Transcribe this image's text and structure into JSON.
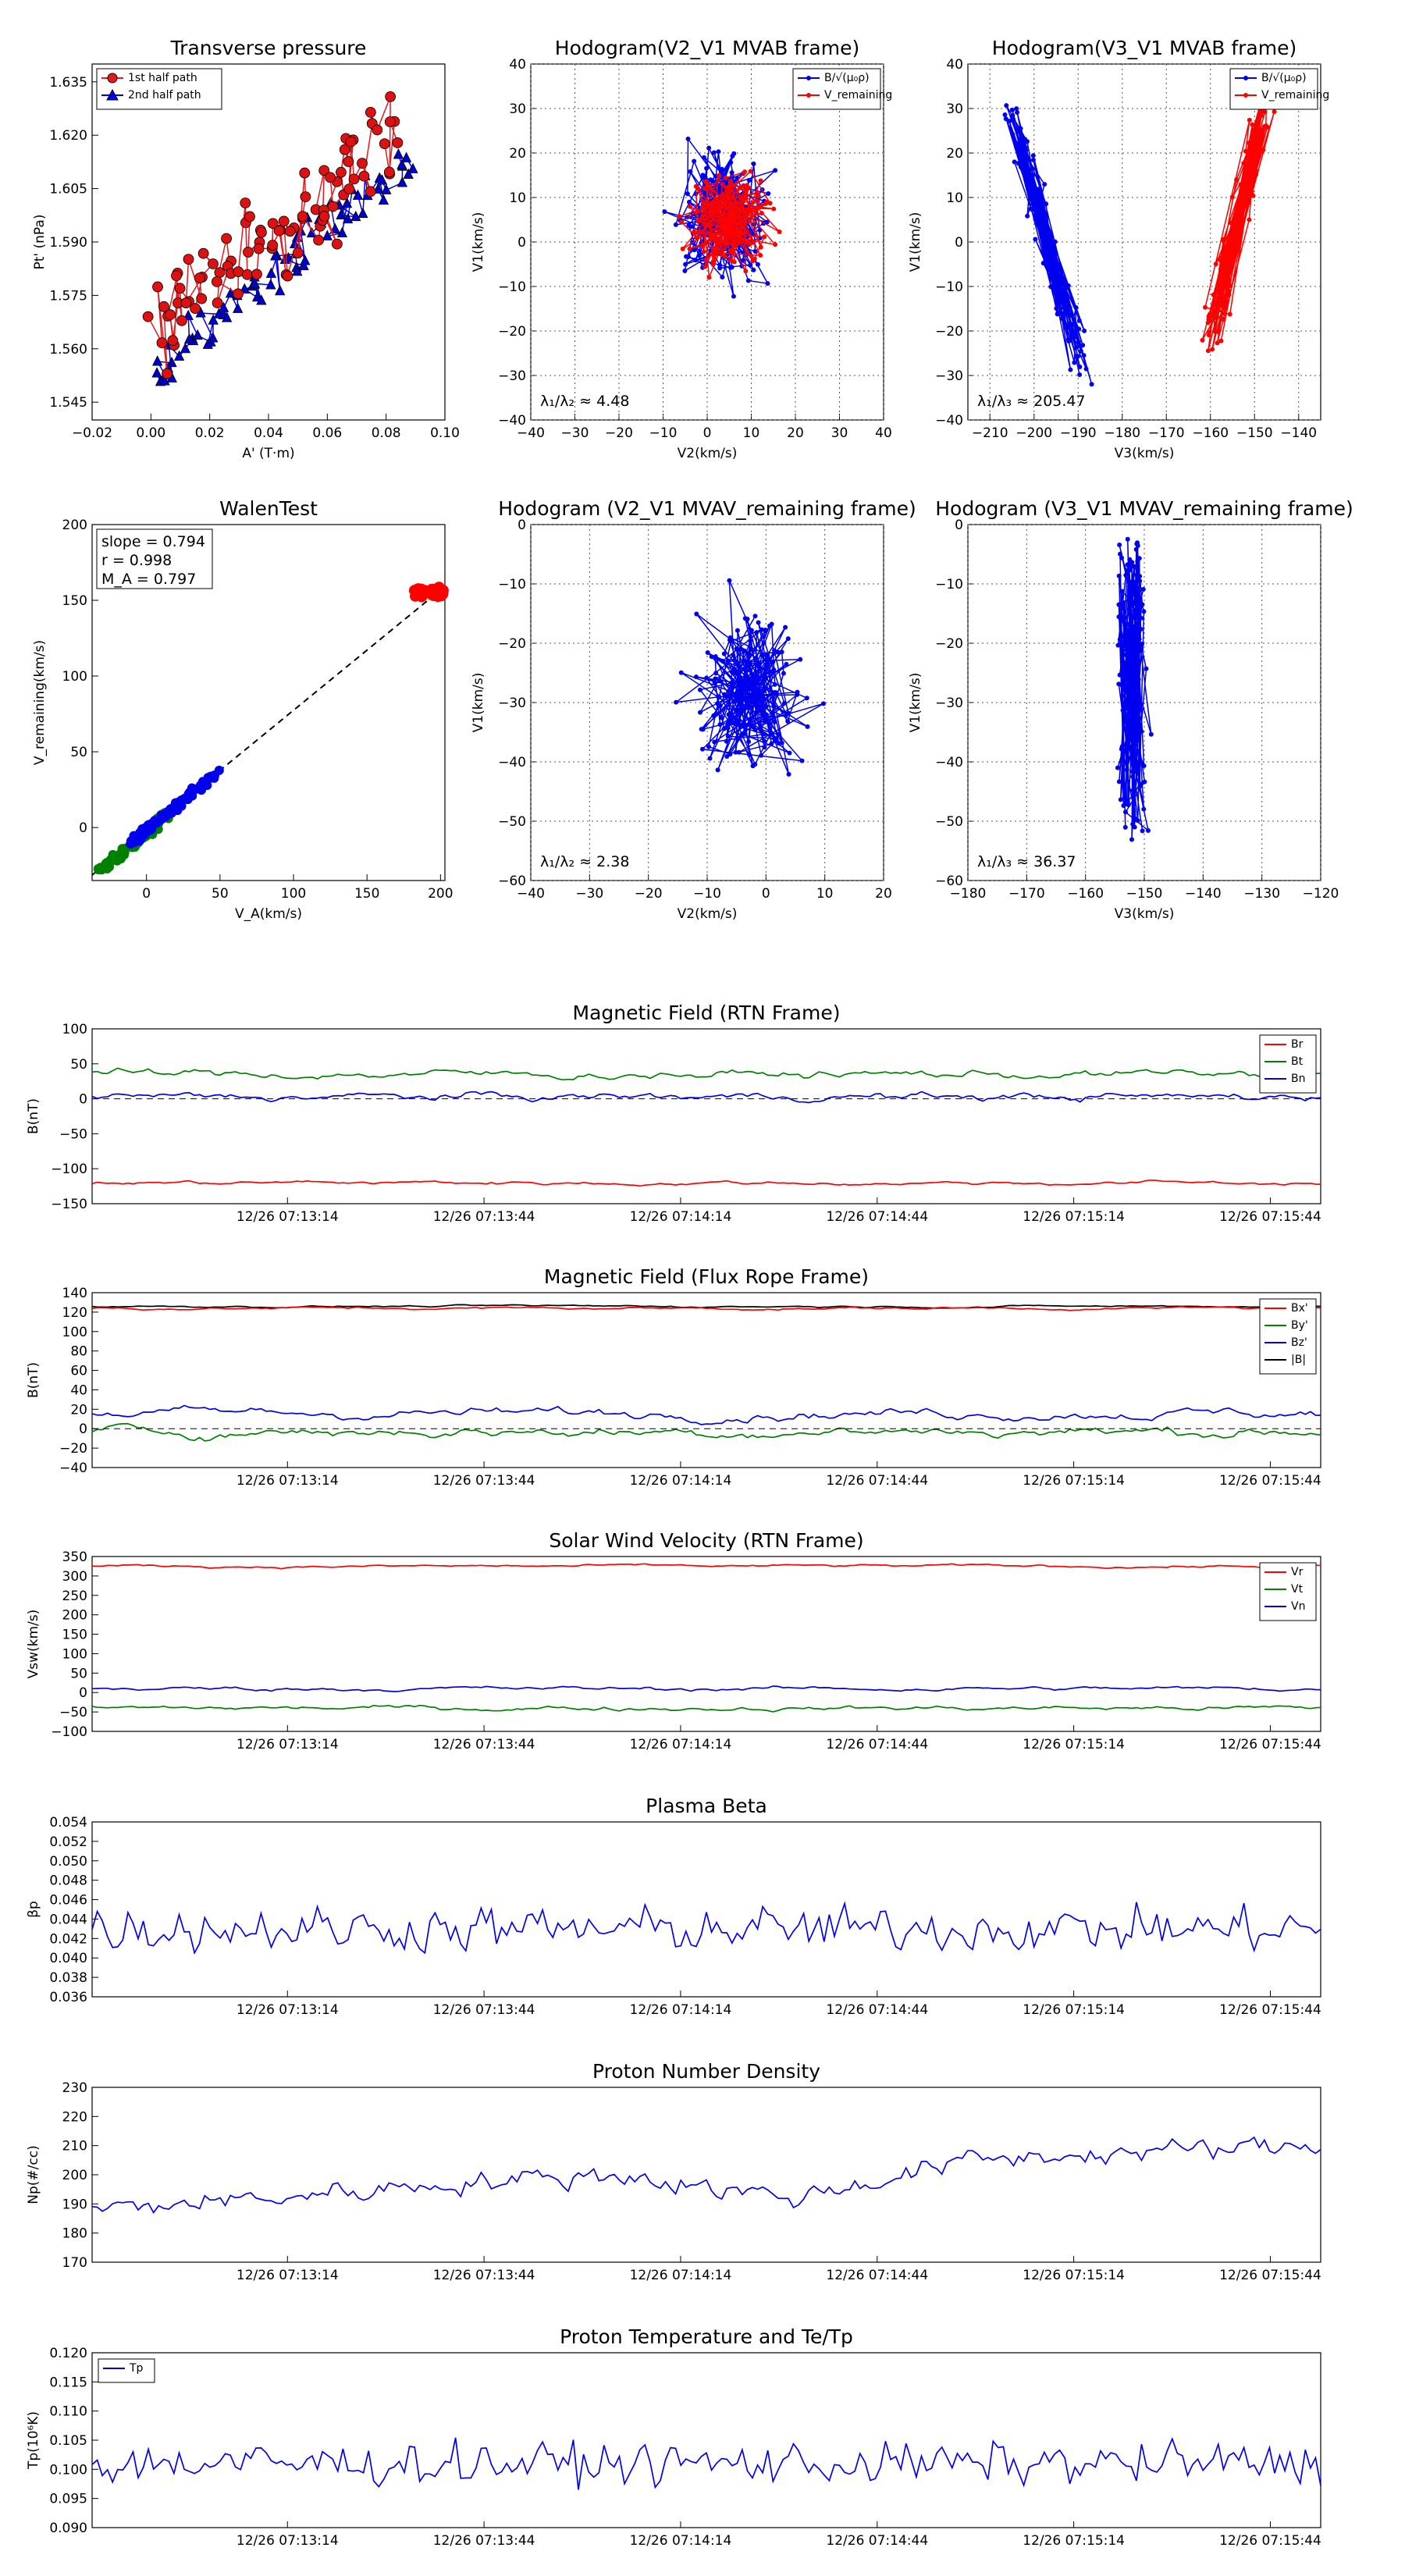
{
  "colors": {
    "red": "#e41a1c",
    "blue": "#0000ee",
    "green": "#008000",
    "black": "#000000",
    "series_red": "#ff0000"
  },
  "chart_data": [
    {
      "id": "pt",
      "type": "scatter",
      "title": "Transverse pressure",
      "xlabel": "A' (T·m)",
      "ylabel": "Pt' (nPa)",
      "xlim": [
        -0.02,
        0.1
      ],
      "ylim": [
        1.54,
        1.64
      ],
      "xticks": [
        "−0.02",
        "0.00",
        "0.02",
        "0.04",
        "0.06",
        "0.08",
        "0.10"
      ],
      "yticks": [
        "1.545",
        "1.560",
        "1.575",
        "1.590",
        "1.605",
        "1.620",
        "1.635"
      ],
      "legend": [
        "1st half path",
        "2nd half path"
      ],
      "series": [
        {
          "name": "1st half path",
          "trend": {
            "x": [
              0.0,
              0.02,
              0.04,
              0.06,
              0.085
            ],
            "y": [
              1.566,
              1.583,
              1.59,
              1.605,
              1.62
            ]
          }
        },
        {
          "name": "2nd half path",
          "trend": {
            "x": [
              0.0,
              0.02,
              0.04,
              0.06,
              0.088
            ],
            "y": [
              1.551,
              1.567,
              1.584,
              1.598,
              1.612
            ]
          }
        }
      ]
    },
    {
      "id": "h1",
      "type": "line",
      "title": "Hodogram(V2_V1 MVAB frame)",
      "xlabel": "V2(km/s)",
      "ylabel": "V1(km/s)",
      "xlim": [
        -40,
        40
      ],
      "ylim": [
        -40,
        40
      ],
      "xticks": [
        "−40",
        "−30",
        "−20",
        "−10",
        "0",
        "10",
        "20",
        "30",
        "40"
      ],
      "yticks": [
        "−40",
        "−30",
        "−20",
        "−10",
        "0",
        "10",
        "20",
        "30",
        "40"
      ],
      "legend": [
        "B/√(μ₀ρ)",
        "V_remaining"
      ],
      "note": "λ₁/λ₂ ≈ 4.48"
    },
    {
      "id": "h2",
      "type": "line",
      "title": "Hodogram(V3_V1 MVAB frame)",
      "xlabel": "V3(km/s)",
      "ylabel": "V1(km/s)",
      "xlim": [
        -215,
        -135
      ],
      "ylim": [
        -40,
        40
      ],
      "xticks": [
        "−210",
        "−200",
        "−190",
        "−180",
        "−170",
        "−160",
        "−150",
        "−140"
      ],
      "yticks": [
        "−40",
        "−30",
        "−20",
        "−10",
        "0",
        "10",
        "20",
        "30",
        "40"
      ],
      "legend": [
        "B/√(μ₀ρ)",
        "V_remaining"
      ],
      "note": "λ₁/λ₃ ≈ 205.47"
    },
    {
      "id": "walen",
      "type": "scatter",
      "title": "WalenTest",
      "xlabel": "V_A(km/s)",
      "ylabel": "V_remaining(km/s)",
      "xlim": [
        -37,
        203
      ],
      "ylim": [
        -35,
        200
      ],
      "xticks": [
        "0",
        "50",
        "100",
        "150",
        "200"
      ],
      "yticks": [
        "0",
        "50",
        "100",
        "150",
        "200"
      ],
      "stats": [
        "slope = 0.794",
        "r = 0.998",
        "M_A = 0.797"
      ]
    },
    {
      "id": "h3",
      "type": "line",
      "title": "Hodogram (V2_V1 MVAV_remaining frame)",
      "xlabel": "V2(km/s)",
      "ylabel": "V1(km/s)",
      "xlim": [
        -40,
        20
      ],
      "ylim": [
        -60,
        0
      ],
      "xticks": [
        "−40",
        "−30",
        "−20",
        "−10",
        "0",
        "10",
        "20"
      ],
      "yticks": [
        "−60",
        "−50",
        "−40",
        "−30",
        "−20",
        "−10",
        "0"
      ],
      "note": "λ₁/λ₂ ≈ 2.38"
    },
    {
      "id": "h4",
      "type": "line",
      "title": "Hodogram (V3_V1 MVAV_remaining frame)",
      "xlabel": "V3(km/s)",
      "ylabel": "V1(km/s)",
      "xlim": [
        -180,
        -120
      ],
      "ylim": [
        -60,
        0
      ],
      "xticks": [
        "−180",
        "−170",
        "−160",
        "−150",
        "−140",
        "−130",
        "−120"
      ],
      "yticks": [
        "−60",
        "−50",
        "−40",
        "−30",
        "−20",
        "−10",
        "0"
      ],
      "note": "λ₁/λ₃ ≈ 36.37"
    },
    {
      "id": "brtn",
      "type": "line",
      "title": "Magnetic Field (RTN Frame)",
      "ylabel": "B(nT)",
      "ylim": [
        -150,
        100
      ],
      "yticks": [
        "−150",
        "−100",
        "−50",
        "0",
        "50",
        "100"
      ],
      "xticks": [
        "12/26 07:13:14",
        "12/26 07:13:44",
        "12/26 07:14:14",
        "12/26 07:14:44",
        "12/26 07:15:14",
        "12/26 07:15:44"
      ],
      "series": [
        {
          "name": "Br",
          "mean": -120
        },
        {
          "name": "Bt",
          "mean": 35
        },
        {
          "name": "Bn",
          "mean": 3
        }
      ]
    },
    {
      "id": "bfr",
      "type": "line",
      "title": "Magnetic Field (Flux Rope Frame)",
      "ylabel": "B(nT)",
      "ylim": [
        -40,
        140
      ],
      "yticks": [
        "−40",
        "−20",
        "0",
        "20",
        "40",
        "60",
        "80",
        "100",
        "120",
        "140"
      ],
      "xticks": [
        "12/26 07:13:14",
        "12/26 07:13:44",
        "12/26 07:14:14",
        "12/26 07:14:44",
        "12/26 07:15:14",
        "12/26 07:15:44"
      ],
      "series": [
        {
          "name": "Bx'",
          "mean": 124
        },
        {
          "name": "By'",
          "mean": -3
        },
        {
          "name": "Bz'",
          "mean": 16
        },
        {
          "name": "|B|",
          "mean": 126
        }
      ]
    },
    {
      "id": "vsw",
      "type": "line",
      "title": "Solar Wind Velocity (RTN Frame)",
      "ylabel": "Vsw(km/s)",
      "ylim": [
        -100,
        350
      ],
      "yticks": [
        "−100",
        "−50",
        "0",
        "50",
        "100",
        "150",
        "200",
        "250",
        "300",
        "350"
      ],
      "xticks": [
        "12/26 07:13:14",
        "12/26 07:13:44",
        "12/26 07:14:14",
        "12/26 07:14:44",
        "12/26 07:15:14",
        "12/26 07:15:44"
      ],
      "series": [
        {
          "name": "Vr",
          "mean": 325
        },
        {
          "name": "Vt",
          "mean": -40
        },
        {
          "name": "Vn",
          "mean": 10
        }
      ]
    },
    {
      "id": "beta",
      "type": "line",
      "title": "Plasma Beta",
      "ylabel": "βp",
      "ylim": [
        0.036,
        0.054
      ],
      "yticks": [
        "0.036",
        "0.038",
        "0.040",
        "0.042",
        "0.044",
        "0.046",
        "0.048",
        "0.050",
        "0.052",
        "0.054"
      ],
      "xticks": [
        "12/26 07:13:14",
        "12/26 07:13:44",
        "12/26 07:14:14",
        "12/26 07:14:44",
        "12/26 07:15:14",
        "12/26 07:15:44"
      ],
      "series": [
        {
          "name": "beta",
          "mean": 0.043
        }
      ]
    },
    {
      "id": "np",
      "type": "line",
      "title": "Proton Number Density",
      "ylabel": "Np(#/cc)",
      "ylim": [
        170,
        230
      ],
      "yticks": [
        "170",
        "180",
        "190",
        "200",
        "210",
        "220",
        "230"
      ],
      "xticks": [
        "12/26 07:13:14",
        "12/26 07:13:44",
        "12/26 07:14:14",
        "12/26 07:14:44",
        "12/26 07:15:14",
        "12/26 07:15:44"
      ],
      "series": [
        {
          "name": "Np",
          "trend": [
            188,
            192,
            197,
            200,
            192,
            205,
            208,
            210
          ]
        }
      ]
    },
    {
      "id": "tp",
      "type": "line",
      "title": "Proton Temperature and Te/Tp",
      "ylabel": "Tp(10⁶K)",
      "ylim": [
        0.09,
        0.12
      ],
      "yticks": [
        "0.090",
        "0.095",
        "0.100",
        "0.105",
        "0.110",
        "0.115",
        "0.120"
      ],
      "xticks": [
        "12/26 07:13:14",
        "12/26 07:13:44",
        "12/26 07:14:14",
        "12/26 07:14:44",
        "12/26 07:15:14",
        "12/26 07:15:44"
      ],
      "legend": [
        "Tp"
      ],
      "series": [
        {
          "name": "Tp",
          "mean": 0.101
        }
      ]
    }
  ]
}
